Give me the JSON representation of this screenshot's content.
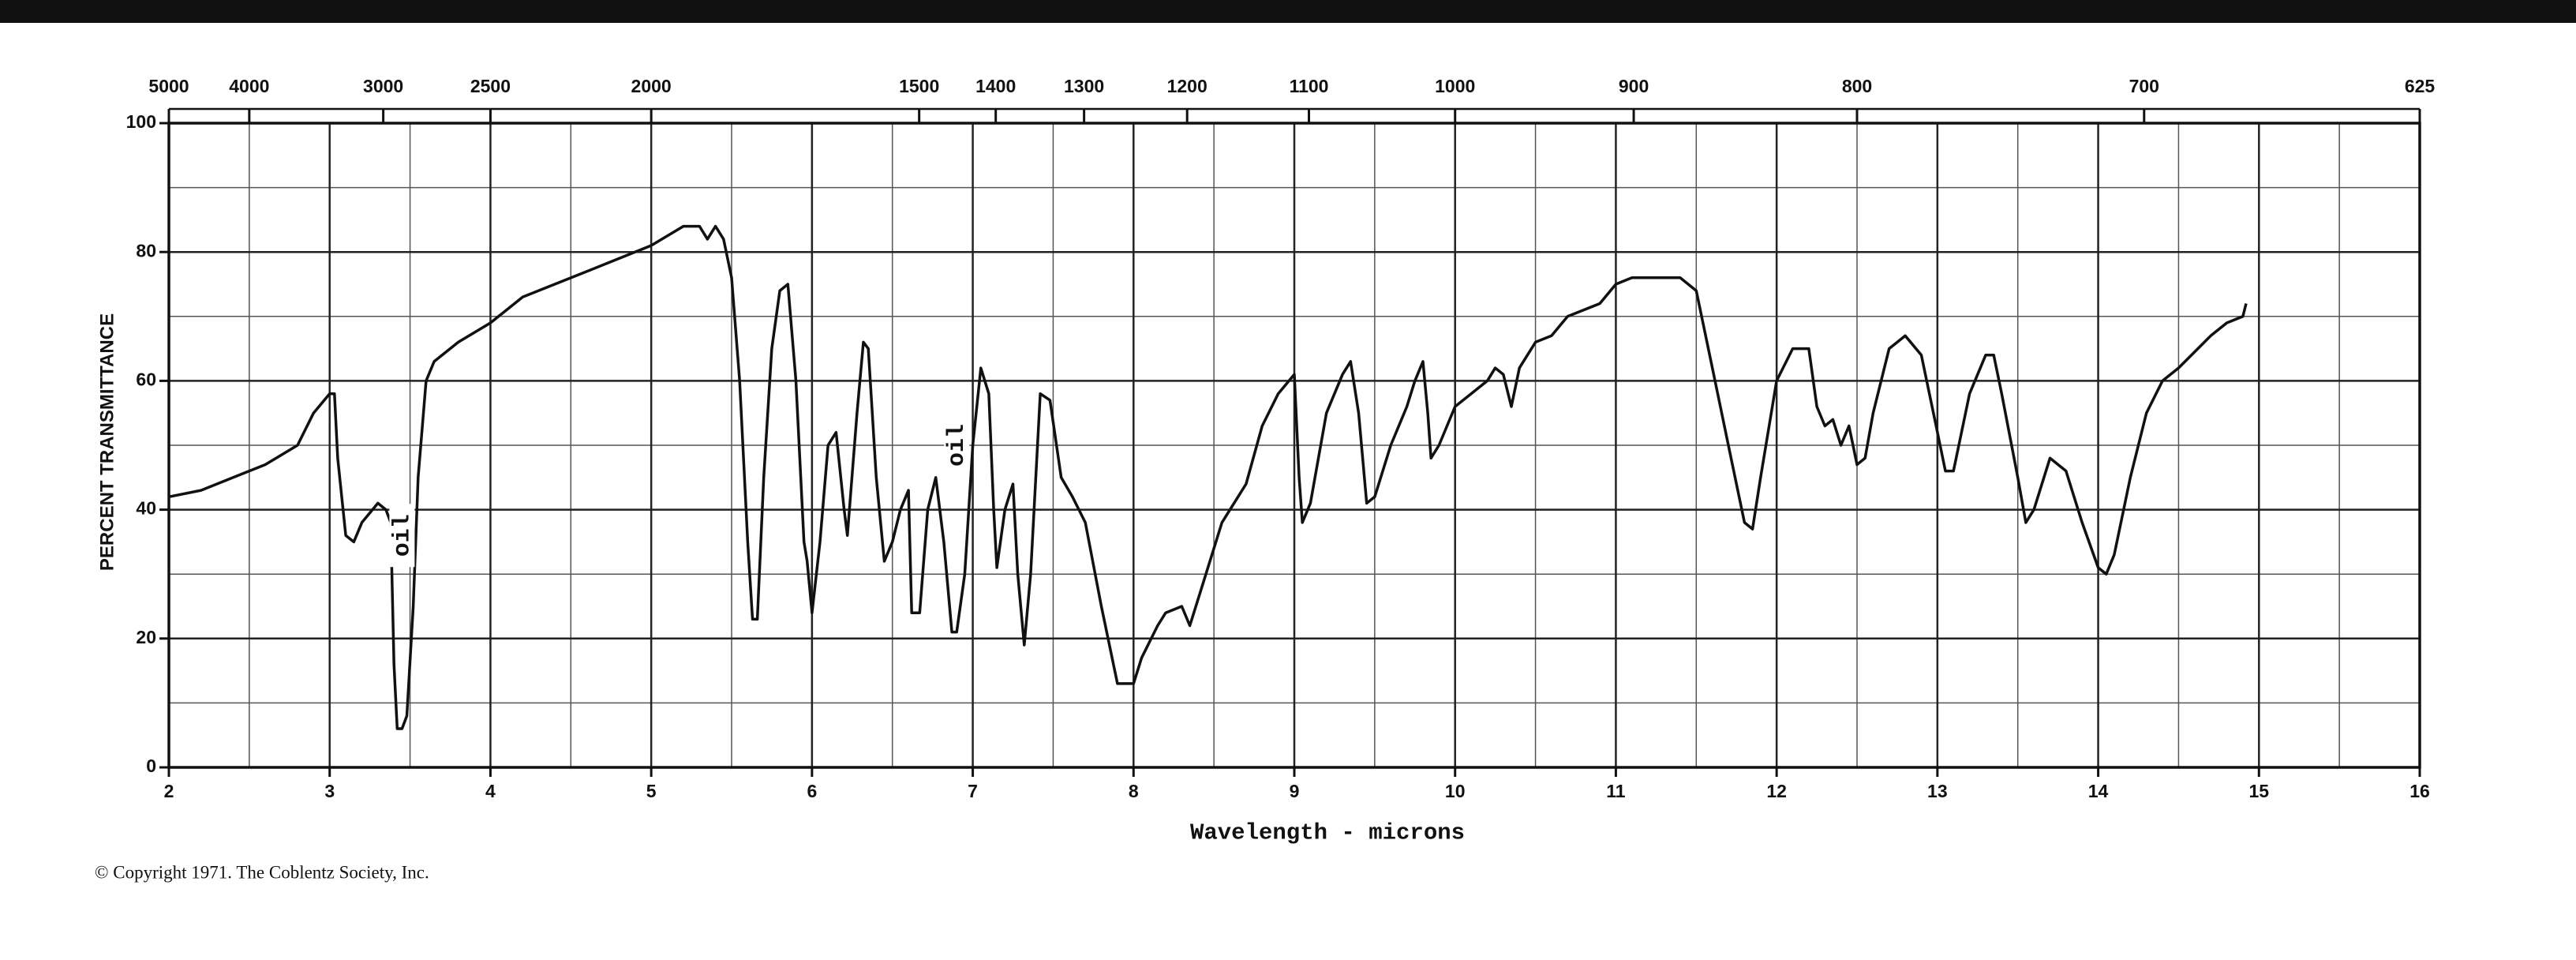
{
  "chart_data": {
    "type": "line",
    "xlabel": "Wavelength - microns",
    "ylabel": "PERCENT TRANSMITTANCE",
    "footnote": "© Copyright 1971. The Coblentz Society, Inc.",
    "color": "#111111",
    "grid": true,
    "xlim": [
      2,
      16
    ],
    "xticks": [
      2,
      3,
      4,
      5,
      6,
      7,
      8,
      9,
      10,
      11,
      12,
      13,
      14,
      15,
      16
    ],
    "xminorticks": [
      2.5,
      3.5,
      4.5,
      5.5,
      6.5,
      7.5,
      8.5,
      9.5,
      10.5,
      11.5,
      12.5,
      13.5,
      14.5,
      15.5
    ],
    "x2scale": "reciprocal",
    "x2lim": [
      5000,
      625
    ],
    "x2ticks": [
      5000,
      4000,
      3000,
      2500,
      2000,
      1500,
      1400,
      1300,
      1200,
      1100,
      1000,
      900,
      800,
      700,
      625
    ],
    "ylim": [
      0,
      100
    ],
    "yticks": [
      0,
      20,
      40,
      60,
      80,
      100
    ],
    "yminorticks": [
      10,
      30,
      50,
      70,
      90
    ],
    "annotations": [
      {
        "text": "oil",
        "x": 3.45,
        "y": 36
      },
      {
        "text": "oil",
        "x": 6.9,
        "y": 50
      }
    ],
    "x": [
      2.0,
      2.2,
      2.4,
      2.6,
      2.8,
      2.9,
      3.0,
      3.03,
      3.05,
      3.1,
      3.15,
      3.2,
      3.3,
      3.35,
      3.38,
      3.4,
      3.42,
      3.45,
      3.48,
      3.52,
      3.55,
      3.6,
      3.65,
      3.8,
      4.0,
      4.2,
      4.4,
      4.6,
      4.8,
      5.0,
      5.2,
      5.3,
      5.35,
      5.4,
      5.45,
      5.5,
      5.55,
      5.6,
      5.63,
      5.66,
      5.7,
      5.75,
      5.8,
      5.85,
      5.9,
      5.95,
      5.97,
      6.0,
      6.05,
      6.1,
      6.15,
      6.2,
      6.22,
      6.28,
      6.32,
      6.35,
      6.4,
      6.45,
      6.5,
      6.55,
      6.6,
      6.62,
      6.67,
      6.72,
      6.77,
      6.82,
      6.87,
      6.9,
      6.95,
      7.0,
      7.05,
      7.1,
      7.13,
      7.15,
      7.2,
      7.25,
      7.28,
      7.32,
      7.36,
      7.42,
      7.48,
      7.55,
      7.62,
      7.7,
      7.8,
      7.9,
      8.0,
      8.05,
      8.15,
      8.2,
      8.3,
      8.35,
      8.45,
      8.55,
      8.6,
      8.7,
      8.8,
      8.9,
      9.0,
      9.03,
      9.05,
      9.1,
      9.2,
      9.3,
      9.35,
      9.4,
      9.45,
      9.5,
      9.6,
      9.7,
      9.75,
      9.8,
      9.83,
      9.85,
      9.9,
      10.0,
      10.1,
      10.2,
      10.25,
      10.3,
      10.35,
      10.4,
      10.5,
      10.6,
      10.7,
      10.9,
      11.0,
      11.1,
      11.3,
      11.4,
      11.5,
      11.6,
      11.7,
      11.8,
      11.85,
      11.9,
      12.0,
      12.1,
      12.2,
      12.25,
      12.3,
      12.35,
      12.4,
      12.45,
      12.5,
      12.55,
      12.6,
      12.7,
      12.8,
      12.9,
      13.0,
      13.05,
      13.1,
      13.2,
      13.3,
      13.35,
      13.4,
      13.5,
      13.55,
      13.6,
      13.7,
      13.8,
      13.9,
      14.0,
      14.05,
      14.1,
      14.2,
      14.3,
      14.4,
      14.5,
      14.7,
      14.8,
      14.9,
      14.92
    ],
    "values": [
      42,
      43,
      45,
      47,
      50,
      55,
      58,
      58,
      48,
      36,
      35,
      38,
      41,
      40,
      38,
      16,
      6,
      6,
      8,
      25,
      45,
      60,
      63,
      66,
      69,
      73,
      75,
      77,
      79,
      81,
      84,
      84,
      82,
      84,
      82,
      76,
      60,
      35,
      23,
      23,
      45,
      65,
      74,
      75,
      60,
      35,
      32,
      24,
      35,
      50,
      52,
      40,
      36,
      55,
      66,
      65,
      45,
      32,
      35,
      40,
      43,
      24,
      24,
      40,
      45,
      35,
      21,
      21,
      30,
      50,
      62,
      58,
      40,
      31,
      40,
      44,
      30,
      19,
      30,
      58,
      57,
      45,
      42,
      38,
      25,
      13,
      13,
      17,
      22,
      24,
      25,
      22,
      30,
      38,
      40,
      44,
      53,
      58,
      61,
      45,
      38,
      41,
      55,
      61,
      63,
      55,
      41,
      42,
      50,
      56,
      60,
      63,
      55,
      48,
      50,
      56,
      58,
      60,
      62,
      61,
      56,
      62,
      66,
      67,
      70,
      72,
      75,
      76,
      76,
      76,
      74,
      62,
      50,
      38,
      37,
      45,
      60,
      65,
      65,
      56,
      53,
      54,
      50,
      53,
      47,
      48,
      55,
      65,
      67,
      64,
      52,
      46,
      46,
      58,
      64,
      64,
      58,
      45,
      38,
      40,
      48,
      46,
      38,
      31,
      30,
      33,
      45,
      55,
      60,
      62,
      67,
      69,
      70,
      72
    ]
  }
}
